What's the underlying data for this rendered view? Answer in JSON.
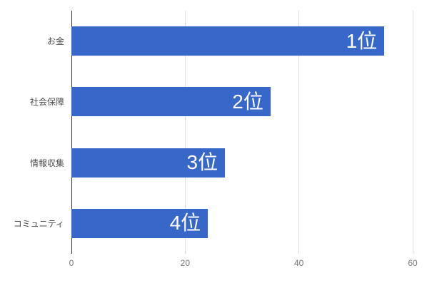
{
  "chart_data": {
    "type": "bar",
    "orientation": "horizontal",
    "title": "",
    "categories": [
      "お金",
      "社会保障",
      "情報収集",
      "コミュニティ"
    ],
    "values": [
      55,
      35,
      27,
      24
    ],
    "bar_labels": [
      "1位",
      "2位",
      "3位",
      "4位"
    ],
    "xlabel": "",
    "ylabel": "",
    "xlim": [
      0,
      60
    ],
    "x_ticks": [
      0,
      20,
      40,
      60
    ],
    "grid": true,
    "legend": "none"
  },
  "colors": {
    "bar": "#3667c9",
    "grid": "#e0e0e0",
    "axis": "#333333",
    "tick_label": "#757575",
    "category_label": "#4c4c4c",
    "bar_label": "#ffffff",
    "background": "#ffffff"
  }
}
